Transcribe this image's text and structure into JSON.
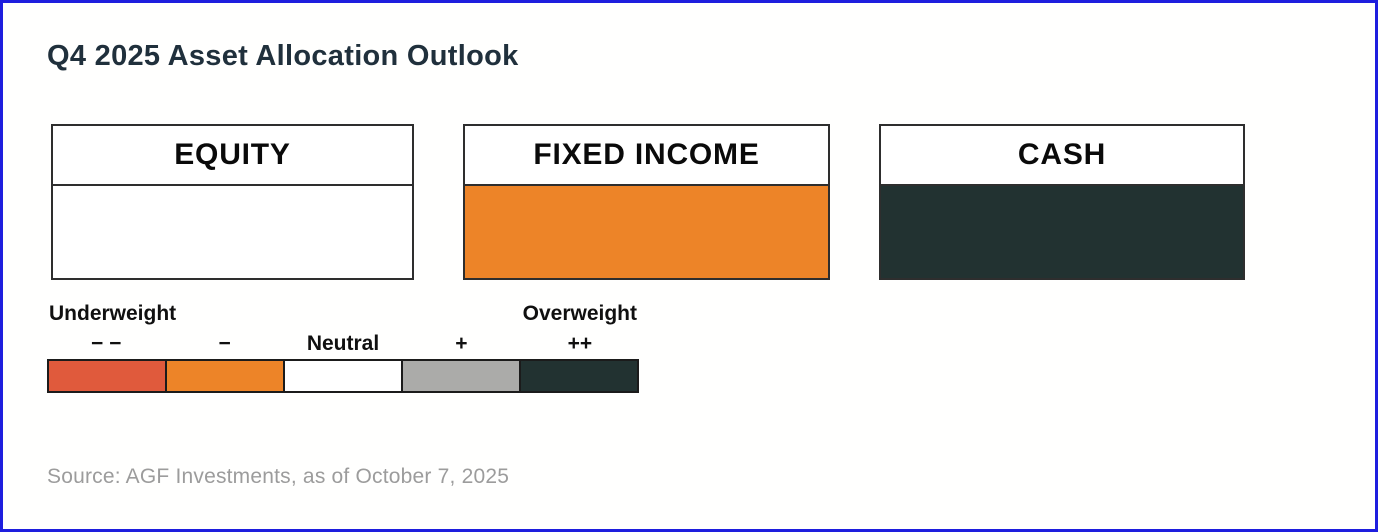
{
  "title": "Q4 2025 Asset Allocation Outlook",
  "colors": {
    "outer_border": "#1E1EDE",
    "title_text": "#20303C",
    "box_border": "#2E2E2E",
    "source_text": "#9C9C9C"
  },
  "chart_data": {
    "type": "table",
    "title": "Q4 2025 Asset Allocation Outlook",
    "assets": [
      {
        "name": "EQUITY",
        "stance": "Neutral",
        "stance_symbol": "Neutral",
        "fill_color": "#FFFFFF"
      },
      {
        "name": "FIXED INCOME",
        "stance": "Underweight (−)",
        "stance_symbol": "−",
        "fill_color": "#ED8428"
      },
      {
        "name": "CASH",
        "stance": "Overweight (++)",
        "stance_symbol": "++",
        "fill_color": "#223231"
      }
    ],
    "scale": {
      "left_label": "Underweight",
      "right_label": "Overweight",
      "steps": [
        {
          "symbol": "− −",
          "color": "#E05A3C"
        },
        {
          "symbol": "−",
          "color": "#ED8428"
        },
        {
          "symbol": "Neutral",
          "color": "#FFFFFF"
        },
        {
          "symbol": "+",
          "color": "#ABABA9"
        },
        {
          "symbol": "++",
          "color": "#223231"
        }
      ]
    },
    "source": "Source: AGF Investments, as of October 7, 2025"
  }
}
